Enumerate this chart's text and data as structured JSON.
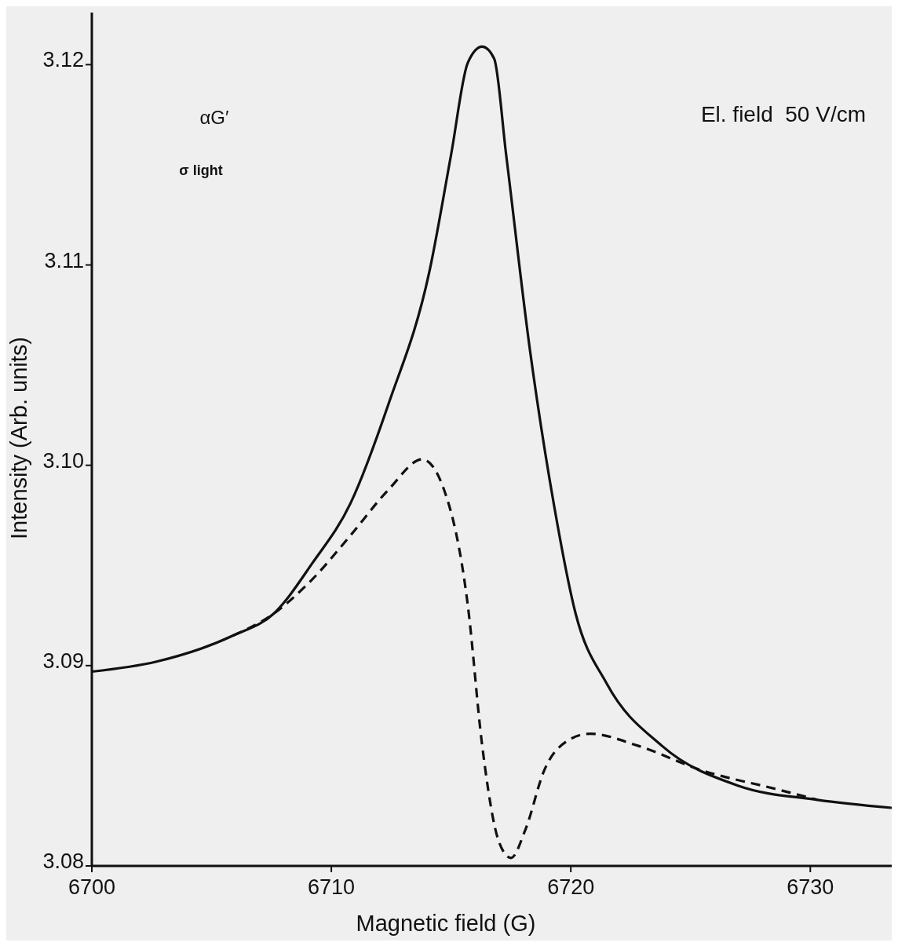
{
  "chart_data": {
    "type": "line",
    "xlabel": "Magnetic field (G)",
    "ylabel": "Intensity (Arb. units)",
    "xlim": [
      6700,
      6733.4
    ],
    "ylim": [
      3.08,
      3.1226
    ],
    "xticks": [
      6700,
      6710,
      6720,
      6730
    ],
    "yticks": [
      {
        "value": 3.08,
        "label": "3.08"
      },
      {
        "value": 3.09,
        "label": "3.09"
      },
      {
        "value": 3.1,
        "label": "3.10"
      },
      {
        "value": 3.11,
        "label": "3.11"
      },
      {
        "value": 3.12,
        "label": "3.12"
      }
    ],
    "grid": false,
    "marker": "none",
    "annotations": [
      "αG′",
      "σ light",
      "El. field  50 V/cm"
    ],
    "series": [
      {
        "color": "#111111",
        "line_style": "solid",
        "x": [
          6700,
          6702.7,
          6705.9,
          6707.6,
          6709.2,
          6710.8,
          6712.4,
          6714.1,
          6715,
          6715.7,
          6716.3,
          6716.8,
          6717.3,
          6718.3,
          6719.3,
          6720.2,
          6721.5,
          6723.8,
          6727,
          6730.3,
          6733.4
        ],
        "values": [
          3.0897,
          3.0902,
          3.0915,
          3.0926,
          3.0951,
          3.0981,
          3.1031,
          3.1097,
          3.1155,
          3.1201,
          3.1209,
          3.1203,
          3.1155,
          3.1057,
          3.098,
          3.0926,
          3.0891,
          3.086,
          3.084,
          3.0833,
          3.0829
        ]
      },
      {
        "color": "#111111",
        "line_style": "dashed",
        "x": [
          6705.9,
          6707.6,
          6709.2,
          6710.8,
          6712.4,
          6713.8,
          6714.7,
          6715.7,
          6716.3,
          6717,
          6717.5,
          6718.1,
          6718.9,
          6719.8,
          6720.8,
          6722.8,
          6725.4,
          6728.7,
          6730.3
        ],
        "values": [
          3.0915,
          3.0926,
          3.0943,
          3.0965,
          3.0988,
          3.1003,
          3.0988,
          3.093,
          3.086,
          3.0812,
          3.0804,
          3.0818,
          3.0848,
          3.0862,
          3.0866,
          3.086,
          3.0848,
          3.0838,
          3.0833
        ]
      }
    ]
  }
}
